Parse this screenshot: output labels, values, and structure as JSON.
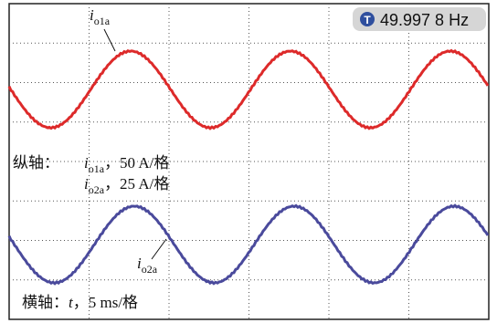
{
  "readout": {
    "icon": "T",
    "frequency": "49.997 8 Hz"
  },
  "traces": [
    {
      "symbol": "i",
      "subscript": "o1a"
    },
    {
      "symbol": "i",
      "subscript": "o2a"
    }
  ],
  "scale": {
    "vertical_label": "纵轴：",
    "vertical": [
      {
        "symbol": "i",
        "subscript": "o1a",
        "setting": "，50 A/格"
      },
      {
        "symbol": "i",
        "subscript": "o2a",
        "setting": "，25 A/格"
      }
    ],
    "horizontal_label": "横轴：",
    "horizontal": {
      "symbol": "t",
      "setting": "，5 ms/格"
    }
  }
}
